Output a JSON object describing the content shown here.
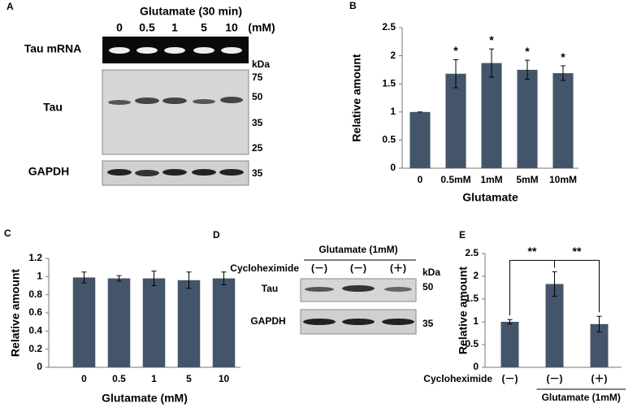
{
  "blot_a": {
    "panel": "A",
    "title": "Glutamate (30 min)",
    "lanes": [
      "0",
      "0.5",
      "1",
      "5",
      "10"
    ],
    "unit": "(mM)",
    "rows": [
      "Tau mRNA",
      "Tau",
      "GAPDH"
    ],
    "kda": "kDa",
    "markers": [
      "75",
      "50",
      "35",
      "25",
      "35"
    ]
  },
  "blot_d": {
    "panel": "D",
    "title": "Glutamate (1mM)",
    "treatment": "Cycloheximide",
    "lanes": [
      "(－)",
      "(－)",
      "(＋)"
    ],
    "kda": "kDa",
    "rows": [
      "Tau",
      "GAPDH"
    ],
    "markers": [
      "50",
      "35"
    ]
  },
  "chart_data": [
    {
      "type": "bar",
      "panel": "B",
      "categories": [
        "0",
        "0.5mM",
        "1mM",
        "5mM",
        "10mM"
      ],
      "values": [
        1,
        1.68,
        1.87,
        1.75,
        1.69
      ],
      "errors": [
        0,
        0.25,
        0.25,
        0.17,
        0.13
      ],
      "annotations": [
        null,
        "*",
        "*",
        "*",
        "*"
      ],
      "color": "#44546a",
      "ylim": [
        0,
        2.5
      ],
      "yticks": [
        0,
        0.5,
        1,
        1.5,
        2,
        2.5
      ],
      "xlabel": "Glutamate",
      "ylabel": "Relative amount"
    },
    {
      "type": "bar",
      "panel": "C",
      "categories": [
        "0",
        "0.5",
        "1",
        "5",
        "10"
      ],
      "values": [
        0.99,
        0.98,
        0.98,
        0.96,
        0.98
      ],
      "errors": [
        0.06,
        0.03,
        0.08,
        0.09,
        0.07
      ],
      "color": "#44546a",
      "ylim": [
        0,
        1.2
      ],
      "yticks": [
        0,
        0.2,
        0.4,
        0.6,
        0.8,
        1,
        1.2
      ],
      "xlabel": "Glutamate (mM)",
      "ylabel": "Relative amount"
    },
    {
      "type": "bar",
      "panel": "E",
      "categories": [
        "(－)",
        "(－)",
        "(＋)"
      ],
      "values": [
        1.0,
        1.83,
        0.95
      ],
      "errors": [
        0.05,
        0.27,
        0.17
      ],
      "significance": [
        "**",
        "**"
      ],
      "row_label": "Cycloheximide",
      "group_label": "Glutamate (1mM)",
      "color": "#44546a",
      "ylim": [
        0,
        2.5
      ],
      "yticks": [
        0,
        0.5,
        1,
        1.5,
        2,
        2.5
      ],
      "ylabel": "Relative amount"
    }
  ]
}
